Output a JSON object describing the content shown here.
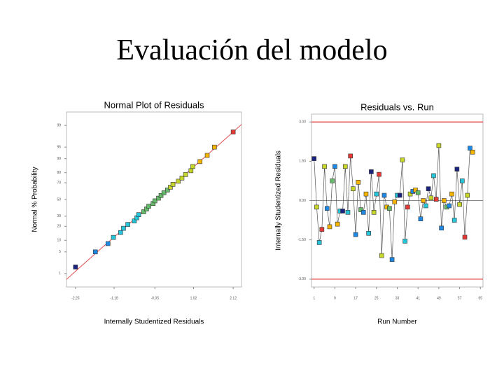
{
  "page_title": "Evaluación del modelo",
  "chart_data": [
    {
      "type": "scatter",
      "title": "Normal Plot of Residuals",
      "x_label": "Internally Studentized Residuals",
      "y_label": "Normal % Probability",
      "x": [
        -2.25,
        -1.7,
        -1.35,
        -1.2,
        -1.0,
        -0.92,
        -0.8,
        -0.62,
        -0.55,
        -0.5,
        -0.36,
        -0.28,
        -0.22,
        -0.1,
        -0.05,
        0.05,
        0.12,
        0.2,
        0.3,
        0.38,
        0.45,
        0.6,
        0.7,
        0.8,
        0.95,
        1.0,
        1.2,
        1.4,
        1.6,
        2.12
      ],
      "values": [
        1.7,
        5,
        8.3,
        11.7,
        15,
        18.3,
        21.7,
        25,
        28.3,
        31.7,
        35,
        38.3,
        41.7,
        45,
        48.3,
        51.7,
        55,
        58.3,
        61.7,
        65,
        68.3,
        71.7,
        75,
        78.3,
        81.7,
        85,
        88.3,
        91.7,
        95,
        98.3
      ],
      "xlim": [
        -2.5,
        2.35
      ],
      "ylim": [
        0.3,
        99.7
      ],
      "xticks": [
        {
          "value": -2.25,
          "label": "-2.25"
        },
        {
          "value": -1.18,
          "label": "-1.18"
        },
        {
          "value": -0.05,
          "label": "-0.05"
        },
        {
          "value": 1.02,
          "label": "1.02"
        },
        {
          "value": 2.12,
          "label": "2.12"
        }
      ],
      "yticks": [
        1,
        5,
        10,
        20,
        30,
        50,
        70,
        80,
        90,
        95,
        99
      ],
      "y_scale": "probability",
      "fit_line_color": "#e05050",
      "colormap": [
        "#1a237e",
        "#1e88e5",
        "#26c6da",
        "#66bb6a",
        "#c6d62b",
        "#f4b400",
        "#e53935"
      ]
    },
    {
      "type": "line",
      "title": "Residuals vs. Run",
      "x_label": "Run Number",
      "y_label": "Internally Studentized Residuals",
      "values": [
        1.6,
        -0.25,
        -1.6,
        -1.1,
        1.3,
        -0.3,
        -1.0,
        0.75,
        1.3,
        -0.9,
        -0.4,
        -0.4,
        1.3,
        -0.45,
        1.7,
        0.45,
        -1.3,
        0.7,
        -0.35,
        -0.45,
        0.25,
        -1.25,
        1.1,
        -0.45,
        0.25,
        1.0,
        -2.1,
        0.2,
        -0.25,
        -0.3,
        -2.25,
        -0.05,
        0.2,
        0.2,
        1.55,
        -1.55,
        -0.25,
        0.25,
        0.35,
        0.4,
        0.3,
        -0.7,
        0,
        -0.2,
        0.45,
        0.1,
        0.95,
        0.05,
        2.1,
        -1.05,
        0,
        -0.25,
        -0.2,
        0.25,
        -0.75,
        1.2,
        -0.15,
        0.75,
        -1.4,
        0.2,
        2.0,
        1.85
      ],
      "xlim": [
        0,
        66
      ],
      "ylim": [
        -3.3,
        3.3
      ],
      "xticks": [
        1,
        9,
        17,
        25,
        33,
        41,
        49,
        57,
        65
      ],
      "yticks": [
        {
          "value": 3,
          "label": "3.00"
        },
        {
          "value": 1.5,
          "label": "1.50"
        },
        {
          "value": 0,
          "label": "0.00"
        },
        {
          "value": -1.5,
          "label": "-1.50"
        },
        {
          "value": -3,
          "label": "-3.00"
        }
      ],
      "limits": [
        3,
        -3
      ],
      "limit_color": "#e03030",
      "line_color": "#555555",
      "colormap": [
        "#1a237e",
        "#1e88e5",
        "#26c6da",
        "#66bb6a",
        "#c6d62b",
        "#f4b400",
        "#e53935"
      ]
    }
  ]
}
